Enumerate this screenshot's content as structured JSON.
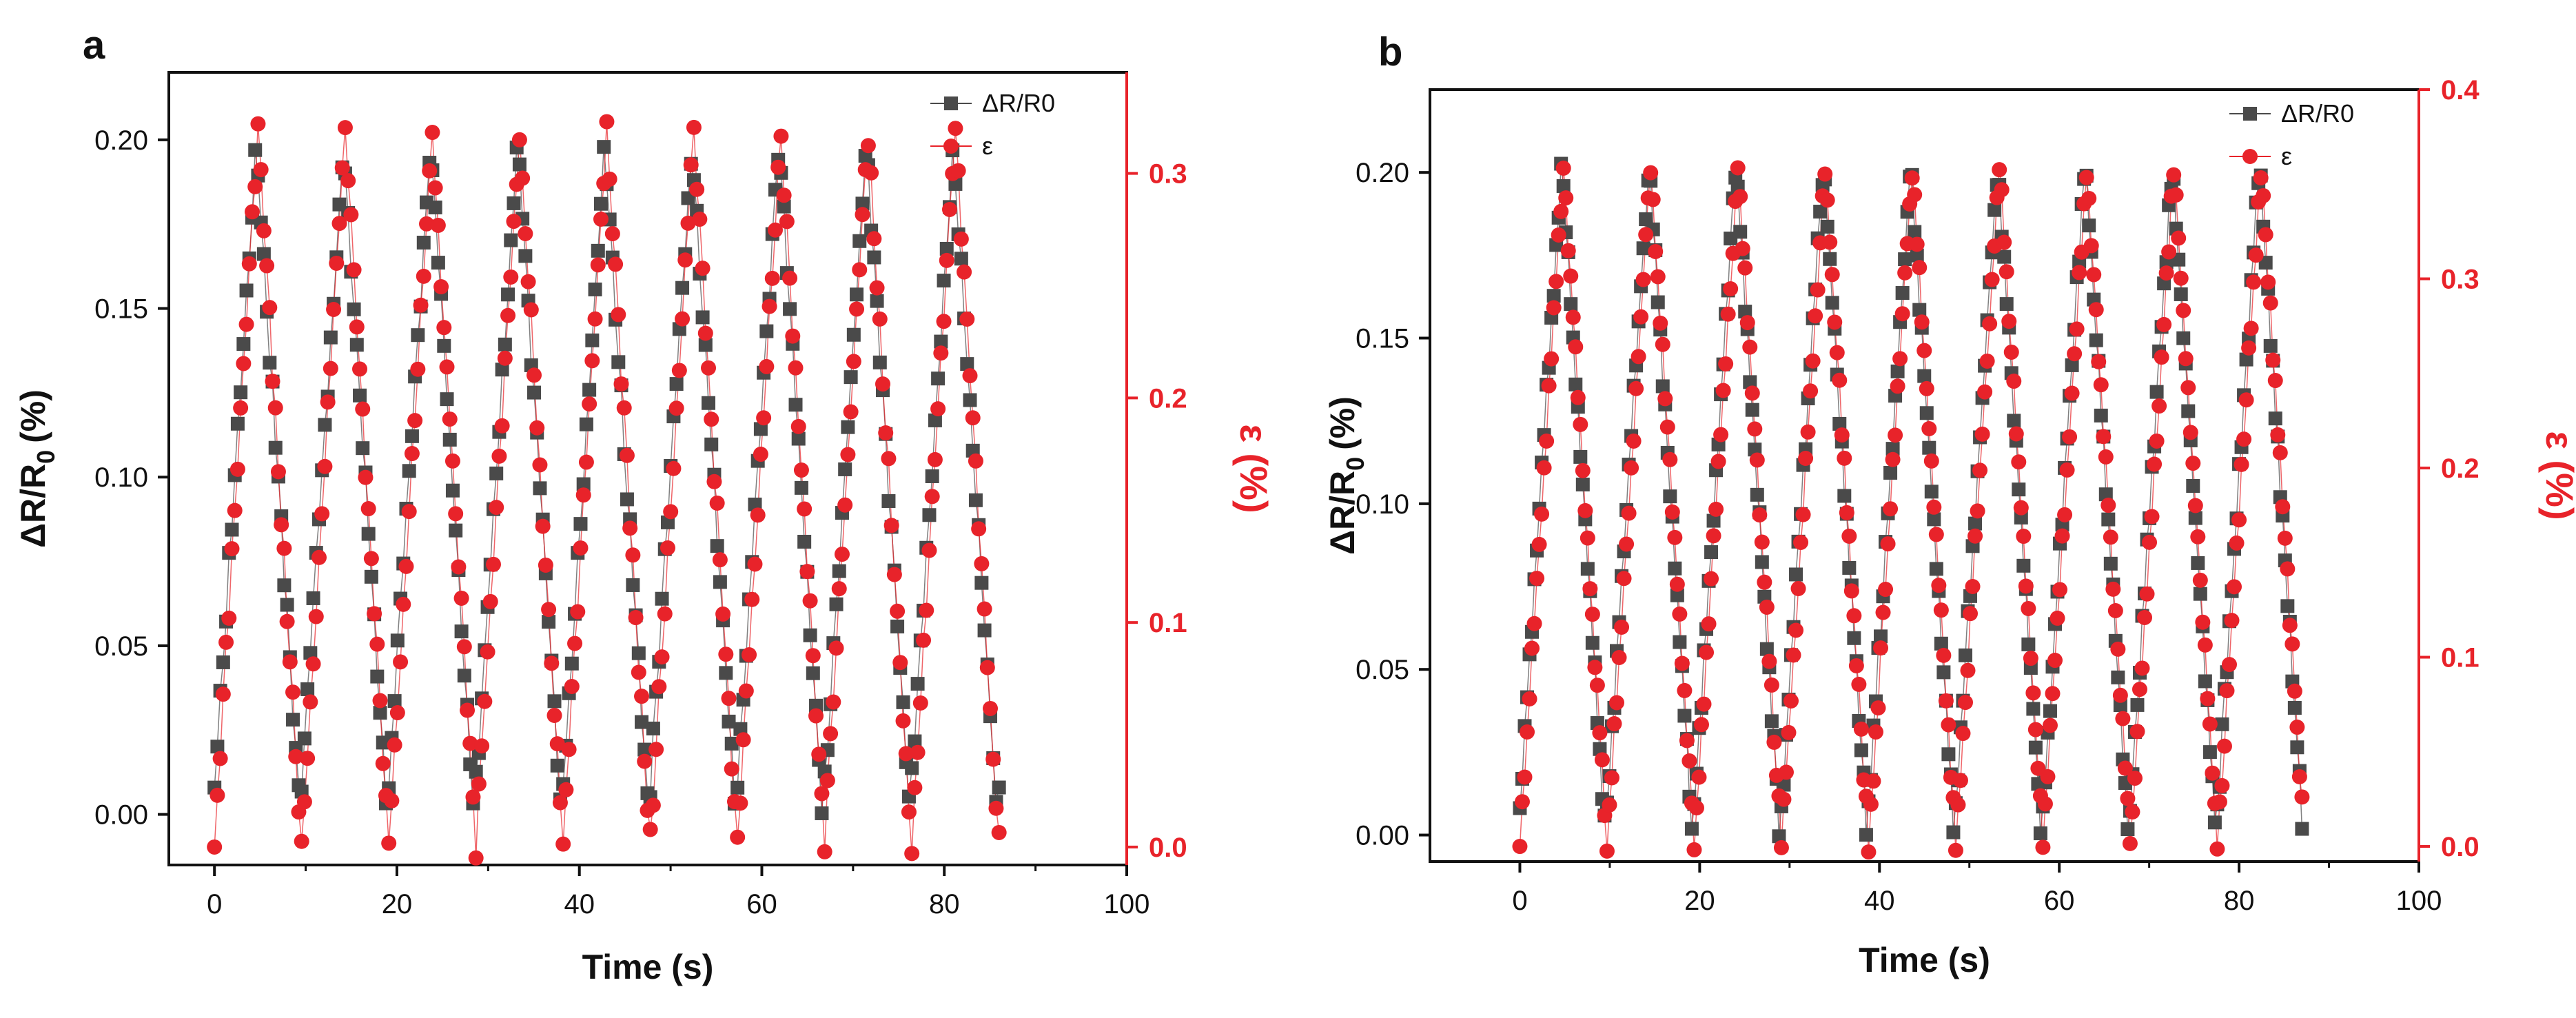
{
  "colors": {
    "resistance": "#4a4a4a",
    "strain": "#e8232a",
    "axis": "#111111"
  },
  "chart_data": [
    {
      "panel": "a",
      "type": "scatter",
      "xlabel": "Time (s)",
      "ylabel": "ΔR/R",
      "ylabel_sub": "0",
      "ylabel_unit": "(%)",
      "y2label": "ε (%)",
      "xlim": [
        -5,
        100
      ],
      "ylim": [
        -0.015,
        0.22
      ],
      "y2lim": [
        -0.008,
        0.345
      ],
      "xticks": [
        0,
        20,
        40,
        60,
        80,
        100
      ],
      "yticks": [
        0.0,
        0.05,
        0.1,
        0.15,
        0.2
      ],
      "y2ticks": [
        0.0,
        0.1,
        0.2,
        0.3
      ],
      "x_tick_labels": [
        "0",
        "20",
        "40",
        "60",
        "80",
        "100"
      ],
      "y_tick_labels": [
        "0.00",
        "0.05",
        "0.10",
        "0.15",
        "0.20"
      ],
      "y2_tick_labels": [
        "0.0",
        "0.1",
        "0.2",
        "0.3"
      ],
      "legend": [
        "ΔR/R0",
        "ε"
      ],
      "legend_position": "top-right",
      "cycle": {
        "start": 0.0,
        "period": 9.55,
        "count": 9,
        "duration": 86.0,
        "points_per_cycle": 30
      },
      "series": [
        {
          "name": "ΔR/R0",
          "axis": "left",
          "marker": "square",
          "min": 0.0,
          "max": 0.199,
          "phase": 0.0
        },
        {
          "name": "ε",
          "axis": "right",
          "marker": "circle",
          "min": 0.0,
          "max": 0.32,
          "phase": 0.0
        }
      ]
    },
    {
      "panel": "b",
      "type": "scatter",
      "xlabel": "Time (s)",
      "ylabel": "ΔR/R",
      "ylabel_sub": "0",
      "ylabel_unit": "(%)",
      "y2label": "ε (%)",
      "xlim": [
        -10,
        100
      ],
      "ylim": [
        -0.008,
        0.225
      ],
      "y2lim": [
        -0.008,
        0.4
      ],
      "xticks": [
        0,
        20,
        40,
        60,
        80,
        100
      ],
      "yticks": [
        0.0,
        0.05,
        0.1,
        0.15,
        0.2
      ],
      "y2ticks": [
        0.0,
        0.1,
        0.2,
        0.3,
        0.4
      ],
      "x_tick_labels": [
        "0",
        "20",
        "40",
        "60",
        "80",
        "100"
      ],
      "y_tick_labels": [
        "0.00",
        "0.05",
        "0.10",
        "0.15",
        "0.20"
      ],
      "y2_tick_labels": [
        "0.0",
        "0.1",
        "0.2",
        "0.3",
        "0.4"
      ],
      "legend": [
        "ΔR/R0",
        "ε"
      ],
      "legend_position": "top-right",
      "cycle": {
        "start": 0.0,
        "period": 9.7,
        "count": 9,
        "duration": 87.0,
        "points_per_cycle": 36
      },
      "series": [
        {
          "name": "ΔR/R0",
          "axis": "left",
          "marker": "square",
          "min": 0.0,
          "max": 0.203,
          "phase": 0.0
        },
        {
          "name": "ε",
          "axis": "right",
          "marker": "circle",
          "min": 0.0,
          "max": 0.36,
          "phase": 0.0
        }
      ]
    }
  ]
}
